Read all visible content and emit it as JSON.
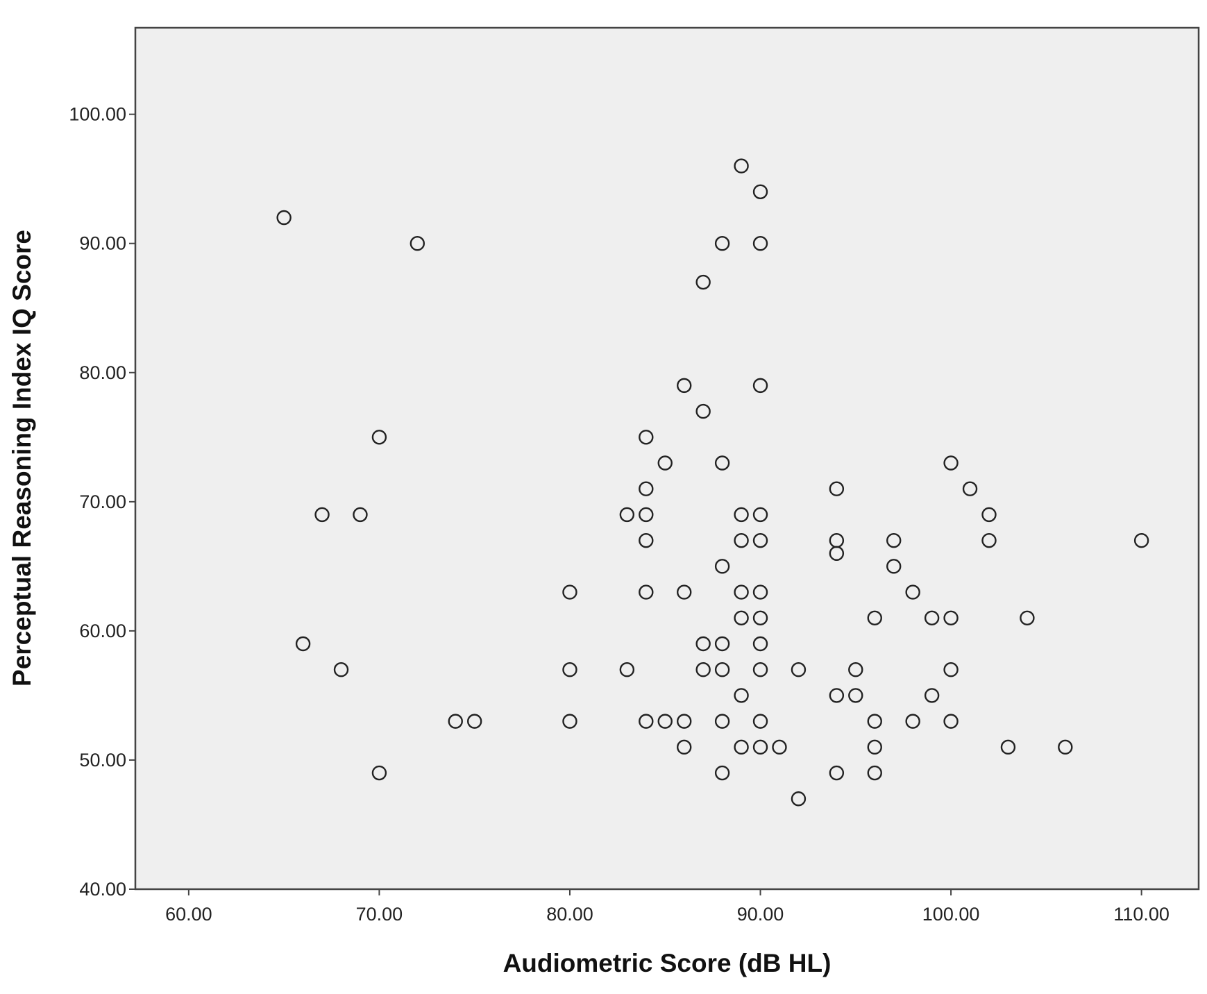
{
  "chart_data": {
    "type": "scatter",
    "xlabel": "Audiometric Score (dB HL)",
    "ylabel": "Perceptual Reasoning Index IQ Score",
    "xlim": [
      57.2,
      113.0
    ],
    "ylim": [
      40,
      106.7
    ],
    "x_ticks": [
      "60.00",
      "70.00",
      "80.00",
      "90.00",
      "100.00",
      "110.00"
    ],
    "y_ticks": [
      "40.00",
      "50.00",
      "60.00",
      "70.00",
      "80.00",
      "90.00",
      "100.00"
    ],
    "grid": false,
    "legend": "none",
    "marker": "open-circle",
    "colors": {
      "plot_background": "#efefef",
      "marker_stroke": "#222222",
      "axis": "#444444"
    },
    "points": [
      [
        65,
        92
      ],
      [
        72,
        90
      ],
      [
        70,
        75
      ],
      [
        67,
        69
      ],
      [
        69,
        69
      ],
      [
        66,
        59
      ],
      [
        68,
        57
      ],
      [
        70,
        49
      ],
      [
        74,
        53
      ],
      [
        75,
        53
      ],
      [
        80,
        63
      ],
      [
        80,
        57
      ],
      [
        80,
        53
      ],
      [
        83,
        69
      ],
      [
        83,
        57
      ],
      [
        84,
        75
      ],
      [
        84,
        71
      ],
      [
        84,
        69
      ],
      [
        84,
        67
      ],
      [
        84,
        63
      ],
      [
        84,
        53
      ],
      [
        85,
        73
      ],
      [
        85,
        53
      ],
      [
        86,
        79
      ],
      [
        86,
        63
      ],
      [
        86,
        53
      ],
      [
        86,
        51
      ],
      [
        87,
        87
      ],
      [
        87,
        77
      ],
      [
        87,
        59
      ],
      [
        87,
        57
      ],
      [
        88,
        90
      ],
      [
        88,
        73
      ],
      [
        88,
        65
      ],
      [
        88,
        59
      ],
      [
        88,
        57
      ],
      [
        88,
        53
      ],
      [
        88,
        49
      ],
      [
        89,
        96
      ],
      [
        89,
        69
      ],
      [
        89,
        67
      ],
      [
        89,
        63
      ],
      [
        89,
        61
      ],
      [
        89,
        55
      ],
      [
        89,
        51
      ],
      [
        90,
        94
      ],
      [
        90,
        90
      ],
      [
        90,
        79
      ],
      [
        90,
        69
      ],
      [
        90,
        67
      ],
      [
        90,
        63
      ],
      [
        90,
        61
      ],
      [
        90,
        59
      ],
      [
        90,
        57
      ],
      [
        90,
        53
      ],
      [
        90,
        51
      ],
      [
        91,
        51
      ],
      [
        92,
        57
      ],
      [
        92,
        47
      ],
      [
        94,
        71
      ],
      [
        94,
        67
      ],
      [
        94,
        66
      ],
      [
        94,
        55
      ],
      [
        94,
        49
      ],
      [
        95,
        57
      ],
      [
        95,
        55
      ],
      [
        96,
        61
      ],
      [
        96,
        53
      ],
      [
        96,
        51
      ],
      [
        96,
        49
      ],
      [
        97,
        67
      ],
      [
        97,
        65
      ],
      [
        98,
        63
      ],
      [
        98,
        53
      ],
      [
        99,
        61
      ],
      [
        99,
        55
      ],
      [
        100,
        73
      ],
      [
        100,
        61
      ],
      [
        100,
        57
      ],
      [
        100,
        53
      ],
      [
        101,
        71
      ],
      [
        102,
        69
      ],
      [
        102,
        67
      ],
      [
        103,
        51
      ],
      [
        104,
        61
      ],
      [
        106,
        51
      ],
      [
        110,
        67
      ]
    ]
  }
}
